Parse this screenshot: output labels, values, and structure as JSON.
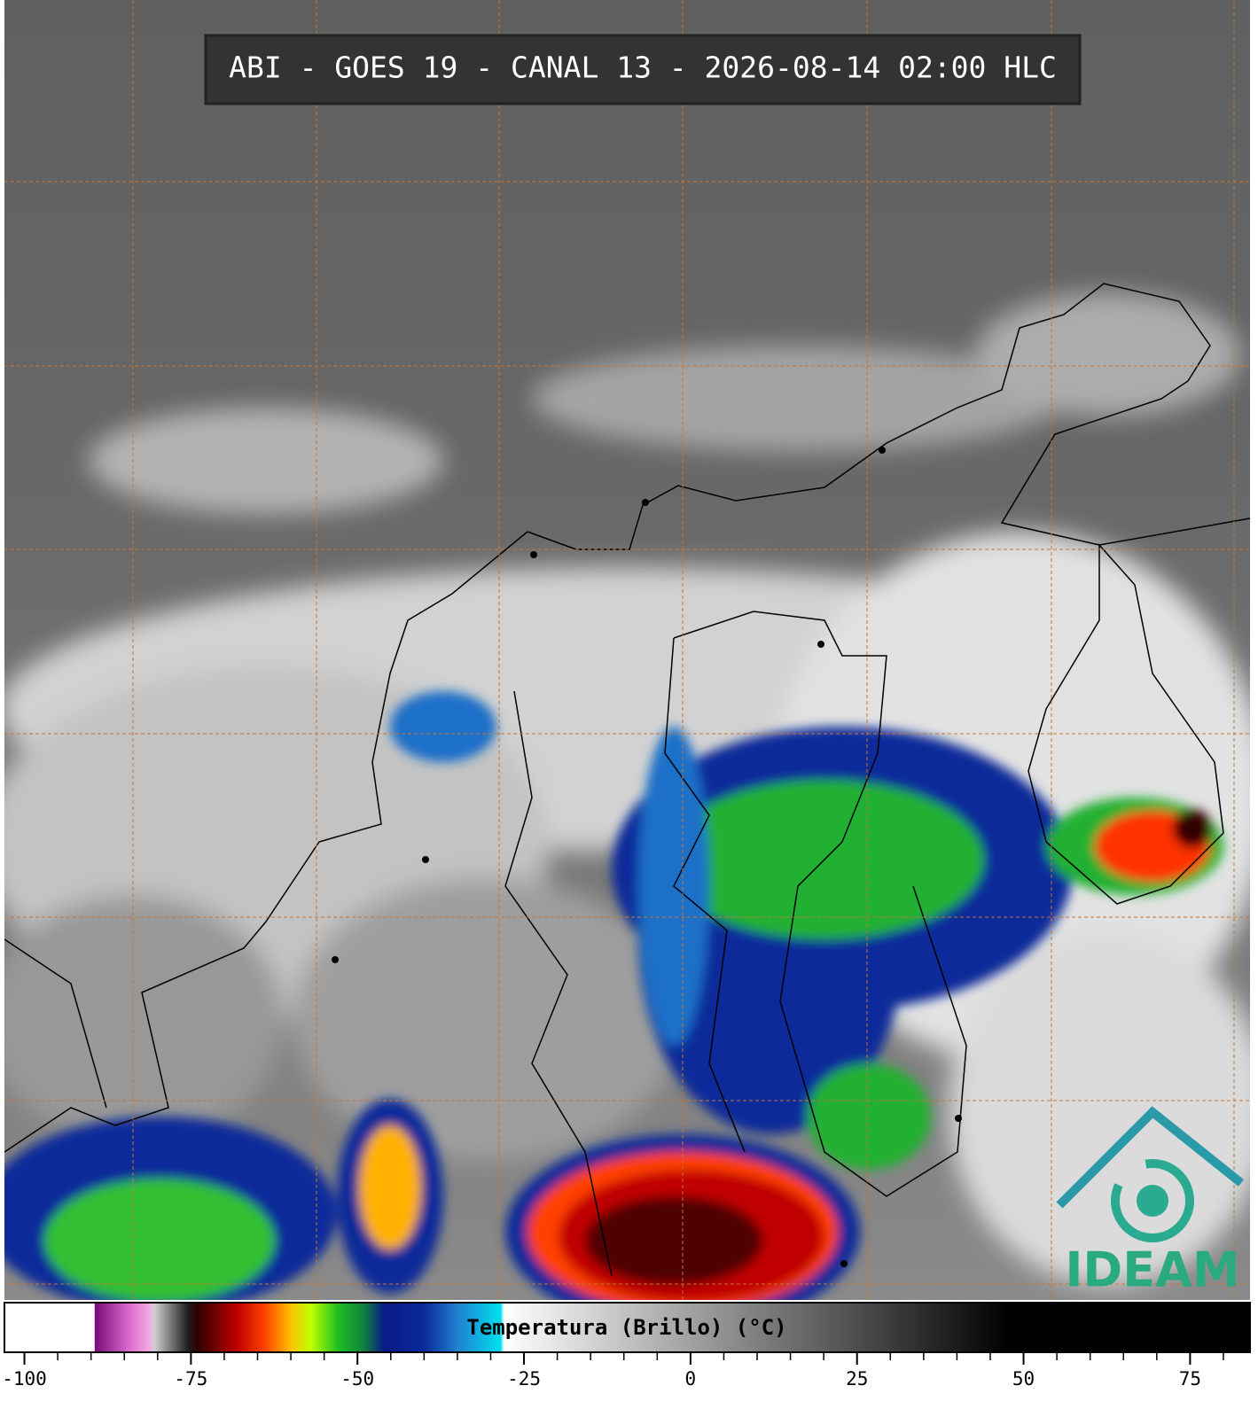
{
  "header": {
    "title": "ABI - GOES 19 - CANAL 13 - 2026-08-14 02:00 HLC"
  },
  "colorbar": {
    "label": "Temperatura (Brillo) (°C)",
    "xlim": [
      -103,
      84
    ],
    "xticks": [
      -100,
      -75,
      -50,
      -25,
      0,
      25,
      50,
      75
    ],
    "minor_ticks": [
      -95,
      -90,
      -85,
      -80,
      -70,
      -65,
      -60,
      -55,
      -45,
      -40,
      -35,
      -30,
      -20,
      -15,
      -10,
      -5,
      5,
      10,
      15,
      20,
      30,
      35,
      40,
      45,
      55,
      60,
      65,
      70,
      80
    ],
    "colormap": [
      {
        "value": -103,
        "color": "#ffffff"
      },
      {
        "value": -89.5,
        "color": "#ffffff"
      },
      {
        "value": -89.4,
        "color": "#7a0a7a"
      },
      {
        "value": -84,
        "color": "#e070d0"
      },
      {
        "value": -81,
        "color": "#f0b0e0"
      },
      {
        "value": -80.5,
        "color": "#d0d0d0"
      },
      {
        "value": -75.5,
        "color": "#202020"
      },
      {
        "value": -74,
        "color": "#300000"
      },
      {
        "value": -68,
        "color": "#c00000"
      },
      {
        "value": -64,
        "color": "#ff4000"
      },
      {
        "value": -60,
        "color": "#ffc000"
      },
      {
        "value": -57,
        "color": "#c0ff00"
      },
      {
        "value": -53,
        "color": "#20c020"
      },
      {
        "value": -49,
        "color": "#108040"
      },
      {
        "value": -46,
        "color": "#0a1a8a"
      },
      {
        "value": -40,
        "color": "#0a2a9a"
      },
      {
        "value": -35,
        "color": "#2080d0"
      },
      {
        "value": -28.5,
        "color": "#00e0f0"
      },
      {
        "value": -28,
        "color": "#ffffff"
      },
      {
        "value": 48,
        "color": "#000000"
      },
      {
        "value": 84,
        "color": "#000000"
      }
    ]
  },
  "logo": {
    "text": "IDEAM"
  }
}
